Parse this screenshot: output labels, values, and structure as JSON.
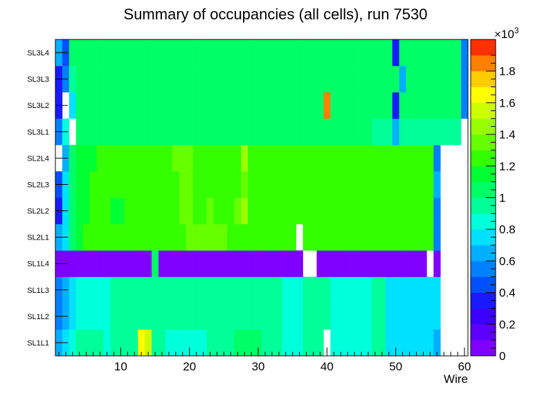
{
  "chart_data": {
    "type": "heatmap",
    "title": "Summary of occupancies (all cells),      run 7530",
    "xlabel": "Wire",
    "ylabel": "",
    "xlim": [
      0.5,
      60.5
    ],
    "x_ticks": [
      10,
      20,
      30,
      40,
      50,
      60
    ],
    "rows": [
      "SL1L1",
      "SL1L2",
      "SL1L3",
      "SL1L4",
      "SL2L1",
      "SL2L2",
      "SL2L3",
      "SL2L4",
      "SL3L1",
      "SL3L2",
      "SL3L3",
      "SL3L4"
    ],
    "zlim": [
      0,
      2000
    ],
    "z_ticks": [
      0,
      200,
      400,
      600,
      800,
      1000,
      1200,
      1400,
      1600,
      1800
    ],
    "z_tick_labels": [
      "0",
      "0.2",
      "0.4",
      "0.6",
      "0.8",
      "1",
      "1.2",
      "1.4",
      "1.6",
      "1.8"
    ],
    "z_multiplier": "×10",
    "z_multiplier_exp": "3",
    "colors": [
      "#7f00ff",
      "#5c00ff",
      "#3b00ff",
      "#1a1aff",
      "#0050ff",
      "#0080ff",
      "#00b0ff",
      "#00e0ff",
      "#00ffdb",
      "#00ff99",
      "#00ff66",
      "#00ff33",
      "#33ff00",
      "#66ff00",
      "#99ff00",
      "#ccff00",
      "#ffff00",
      "#ffcc00",
      "#ff8000",
      "#ff3000"
    ],
    "z": [
      [
        650,
        700,
        800,
        900,
        900,
        950,
        950,
        800,
        950,
        950,
        950,
        950,
        1650,
        1500,
        950,
        950,
        850,
        850,
        850,
        850,
        850,
        850,
        950,
        950,
        950,
        950,
        1000,
        1000,
        1000,
        1000,
        950,
        950,
        950,
        800,
        800,
        800,
        900,
        950,
        900,
        null,
        850,
        850,
        850,
        850,
        850,
        850,
        900,
        900,
        750,
        750,
        750,
        750,
        700,
        700,
        700,
        650,
        null,
        null,
        null,
        null
      ],
      [
        500,
        600,
        700,
        800,
        850,
        850,
        850,
        850,
        900,
        900,
        900,
        900,
        900,
        900,
        900,
        900,
        900,
        900,
        900,
        900,
        900,
        900,
        950,
        950,
        950,
        950,
        950,
        950,
        950,
        950,
        900,
        900,
        900,
        850,
        850,
        850,
        900,
        900,
        900,
        900,
        850,
        850,
        850,
        850,
        850,
        850,
        900,
        900,
        750,
        750,
        750,
        750,
        700,
        700,
        700,
        700,
        null,
        null,
        null,
        null
      ],
      [
        550,
        600,
        750,
        850,
        850,
        850,
        850,
        850,
        900,
        900,
        900,
        900,
        900,
        900,
        900,
        900,
        900,
        900,
        900,
        900,
        900,
        900,
        950,
        950,
        950,
        950,
        950,
        950,
        950,
        950,
        900,
        900,
        900,
        850,
        850,
        850,
        900,
        900,
        900,
        900,
        850,
        850,
        850,
        850,
        850,
        850,
        900,
        900,
        750,
        750,
        750,
        750,
        700,
        700,
        700,
        700,
        null,
        null,
        null,
        null
      ],
      [
        80,
        80,
        80,
        80,
        80,
        80,
        80,
        80,
        80,
        80,
        80,
        80,
        80,
        80,
        1050,
        80,
        80,
        80,
        80,
        80,
        80,
        80,
        80,
        80,
        80,
        80,
        80,
        80,
        80,
        80,
        80,
        80,
        80,
        80,
        80,
        80,
        null,
        null,
        80,
        80,
        80,
        80,
        80,
        80,
        80,
        80,
        80,
        80,
        80,
        80,
        80,
        80,
        80,
        80,
        null,
        80,
        null,
        null,
        null,
        null
      ],
      [
        650,
        750,
        1000,
        1100,
        1200,
        1250,
        1250,
        1250,
        1250,
        1250,
        1250,
        1250,
        1250,
        1250,
        1250,
        1250,
        1250,
        1250,
        1250,
        1300,
        1300,
        1300,
        1300,
        1300,
        1300,
        1250,
        1250,
        1250,
        1250,
        1250,
        1250,
        1250,
        1250,
        1250,
        1250,
        null,
        1250,
        1250,
        1250,
        1250,
        1250,
        1200,
        1200,
        1200,
        1200,
        1200,
        1200,
        1200,
        1200,
        1200,
        1200,
        1200,
        1200,
        1200,
        1200,
        500,
        null,
        null,
        null,
        null
      ],
      [
        350,
        700,
        1000,
        1100,
        1150,
        1200,
        1200,
        1200,
        1150,
        1150,
        1200,
        1250,
        1250,
        1250,
        1250,
        1250,
        1250,
        1250,
        1300,
        1300,
        1250,
        1250,
        1300,
        1250,
        1250,
        1250,
        1300,
        1400,
        1250,
        1250,
        1250,
        1250,
        1200,
        1250,
        1250,
        1250,
        1250,
        1200,
        1200,
        1200,
        1200,
        1200,
        1200,
        1200,
        1200,
        1200,
        1200,
        1200,
        1200,
        1200,
        1200,
        1200,
        1200,
        1200,
        1200,
        550,
        null,
        null,
        null,
        null
      ],
      [
        400,
        700,
        1050,
        1100,
        1150,
        1200,
        1200,
        1200,
        1200,
        1200,
        1200,
        1200,
        1250,
        1250,
        1250,
        1250,
        1250,
        1250,
        1300,
        1300,
        1250,
        1250,
        1250,
        1250,
        1250,
        1250,
        1250,
        1300,
        1250,
        1250,
        1250,
        1250,
        1200,
        1250,
        1250,
        1250,
        1250,
        1250,
        1250,
        1250,
        1250,
        1200,
        1200,
        1250,
        1250,
        1200,
        1200,
        1200,
        1200,
        1200,
        1200,
        1200,
        1200,
        1200,
        1200,
        600,
        null,
        null,
        null,
        null
      ],
      [
        null,
        600,
        1000,
        1150,
        1150,
        1150,
        1200,
        1200,
        1200,
        1200,
        1250,
        1250,
        1250,
        1250,
        1250,
        1250,
        1250,
        1300,
        1300,
        1300,
        1250,
        1250,
        1250,
        1250,
        1250,
        1250,
        1250,
        1450,
        1250,
        1250,
        1250,
        1250,
        1250,
        1250,
        1250,
        1250,
        1250,
        1250,
        1250,
        1250,
        1250,
        1200,
        1200,
        1250,
        1250,
        1200,
        1200,
        1200,
        1200,
        1200,
        1200,
        1200,
        1200,
        1200,
        1200,
        500,
        null,
        null,
        null,
        null
      ],
      [
        500,
        800,
        null,
        1000,
        1050,
        1050,
        1050,
        1050,
        1050,
        1050,
        1050,
        1050,
        1050,
        1050,
        1050,
        1050,
        1050,
        1050,
        1050,
        1050,
        1050,
        1050,
        1050,
        1050,
        1050,
        1050,
        1050,
        1050,
        1050,
        1050,
        1050,
        1050,
        1050,
        1050,
        1050,
        1050,
        1050,
        1050,
        1050,
        1050,
        1050,
        1050,
        1050,
        1050,
        1050,
        1000,
        950,
        950,
        950,
        650,
        950,
        950,
        900,
        900,
        900,
        900,
        900,
        900,
        900,
        null
      ],
      [
        300,
        null,
        700,
        1000,
        1050,
        1050,
        1050,
        1050,
        1050,
        1050,
        1050,
        1050,
        1050,
        1050,
        1050,
        1050,
        1050,
        1050,
        1050,
        1050,
        1050,
        1050,
        1050,
        1050,
        1050,
        1050,
        1050,
        1050,
        1050,
        1050,
        1050,
        1050,
        1050,
        1050,
        1050,
        1050,
        1050,
        1050,
        1050,
        1850,
        1050,
        1050,
        1050,
        1050,
        1050,
        1050,
        1050,
        1050,
        1050,
        300,
        1050,
        1050,
        1050,
        1050,
        1050,
        1050,
        1050,
        1050,
        1000,
        500
      ],
      [
        350,
        550,
        900,
        1000,
        1050,
        1050,
        1050,
        1050,
        1050,
        1050,
        1050,
        1050,
        1050,
        1050,
        1050,
        1050,
        1050,
        1050,
        1050,
        1050,
        1050,
        1050,
        1050,
        1050,
        1050,
        1050,
        1050,
        1050,
        1050,
        1050,
        1050,
        1050,
        1050,
        1050,
        1050,
        1050,
        1050,
        1050,
        1050,
        1050,
        1050,
        1050,
        1050,
        1050,
        1050,
        1050,
        1050,
        1050,
        1050,
        1050,
        650,
        1050,
        1050,
        1050,
        1050,
        1050,
        1050,
        1050,
        1000,
        500
      ],
      [
        600,
        400,
        1000,
        1050,
        1050,
        1050,
        1050,
        1050,
        1050,
        1050,
        1050,
        1050,
        1050,
        1050,
        1050,
        1050,
        1050,
        1050,
        1050,
        1050,
        1050,
        1050,
        1050,
        1050,
        1050,
        1050,
        1050,
        1050,
        1050,
        1050,
        1050,
        1050,
        1050,
        1050,
        1050,
        1050,
        1050,
        1050,
        1050,
        1050,
        1050,
        1050,
        1050,
        1050,
        1050,
        1050,
        1050,
        1050,
        1050,
        300,
        1050,
        1050,
        1050,
        1050,
        1050,
        1050,
        1050,
        1050,
        1000,
        500
      ]
    ]
  }
}
